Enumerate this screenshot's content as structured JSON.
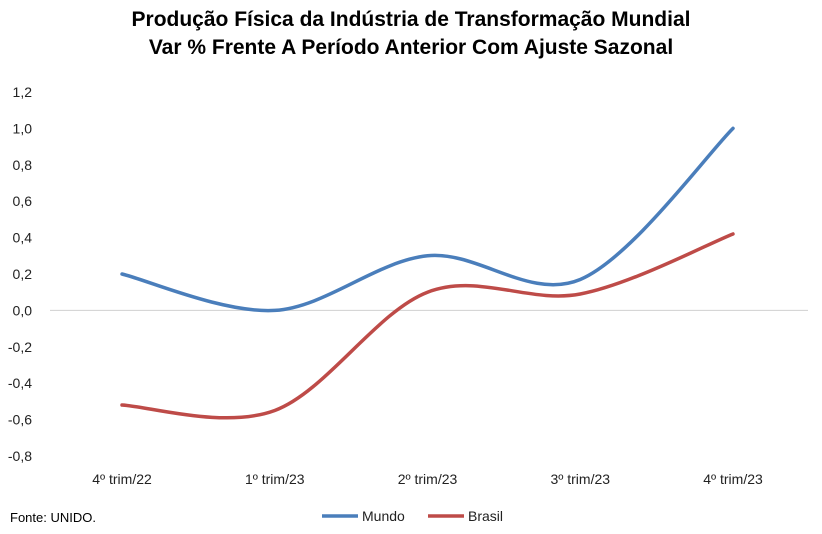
{
  "chart_data": {
    "type": "line",
    "title": "Produção Física da Indústria de Transformação Mundial",
    "subtitle": "Var % Frente A Período Anterior Com Ajuste Sazonal",
    "categories": [
      "4º trim/22",
      "1º trim/23",
      "2º trim/23",
      "3º trim/23",
      "4º trim/23"
    ],
    "series": [
      {
        "name": "Mundo",
        "color": "#4a7ebb",
        "values": [
          0.2,
          0.0,
          0.3,
          0.17,
          1.0
        ]
      },
      {
        "name": "Brasil",
        "color": "#be4b48",
        "values": [
          -0.52,
          -0.55,
          0.1,
          0.09,
          0.42
        ]
      }
    ],
    "ylim": [
      -0.8,
      1.2
    ],
    "yticks": [
      "1,2",
      "1,0",
      "0,8",
      "0,6",
      "0,4",
      "0,2",
      "0,0",
      "-0,2",
      "-0,4",
      "-0,6",
      "-0,8"
    ],
    "ytick_values": [
      1.2,
      1.0,
      0.8,
      0.6,
      0.4,
      0.2,
      0.0,
      -0.2,
      -0.4,
      -0.6,
      -0.8
    ],
    "grid": false,
    "legend_position": "bottom",
    "source": "Fonte: UNIDO."
  }
}
